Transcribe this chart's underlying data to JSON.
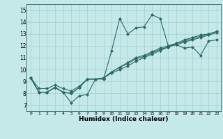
{
  "xlabel": "Humidex (Indice chaleur)",
  "ylabel": "",
  "background_color": "#c5e8e8",
  "grid_color": "#a8cccc",
  "line_color": "#2a6868",
  "marker_color": "#2a6868",
  "xlim": [
    -0.5,
    23.5
  ],
  "ylim": [
    6.5,
    15.5
  ],
  "xticks": [
    0,
    1,
    2,
    3,
    4,
    5,
    6,
    7,
    8,
    9,
    10,
    11,
    12,
    13,
    14,
    15,
    16,
    17,
    18,
    19,
    20,
    21,
    22,
    23
  ],
  "yticks": [
    7,
    8,
    9,
    10,
    11,
    12,
    13,
    14,
    15
  ],
  "series": [
    [
      9.3,
      8.1,
      8.1,
      8.5,
      8.1,
      7.2,
      7.8,
      7.9,
      9.2,
      9.2,
      11.6,
      14.3,
      13.0,
      13.5,
      13.6,
      14.6,
      14.3,
      12.0,
      12.1,
      11.8,
      11.9,
      11.2,
      12.4,
      12.5
    ],
    [
      9.3,
      8.1,
      8.1,
      8.5,
      8.1,
      8.0,
      8.5,
      9.2,
      9.2,
      9.3,
      9.8,
      10.2,
      10.6,
      11.0,
      11.2,
      11.5,
      11.8,
      12.0,
      12.2,
      12.4,
      12.6,
      12.8,
      13.0,
      13.2
    ],
    [
      9.3,
      8.1,
      8.1,
      8.5,
      8.1,
      8.0,
      8.5,
      9.2,
      9.2,
      9.3,
      9.8,
      10.2,
      10.5,
      10.9,
      11.1,
      11.4,
      11.7,
      11.9,
      12.1,
      12.3,
      12.5,
      12.7,
      12.9,
      13.1
    ],
    [
      9.3,
      8.4,
      8.4,
      8.7,
      8.4,
      8.2,
      8.6,
      9.2,
      9.2,
      9.3,
      9.7,
      10.0,
      10.3,
      10.7,
      11.0,
      11.3,
      11.6,
      11.9,
      12.2,
      12.5,
      12.7,
      12.9,
      13.0,
      13.2
    ]
  ]
}
